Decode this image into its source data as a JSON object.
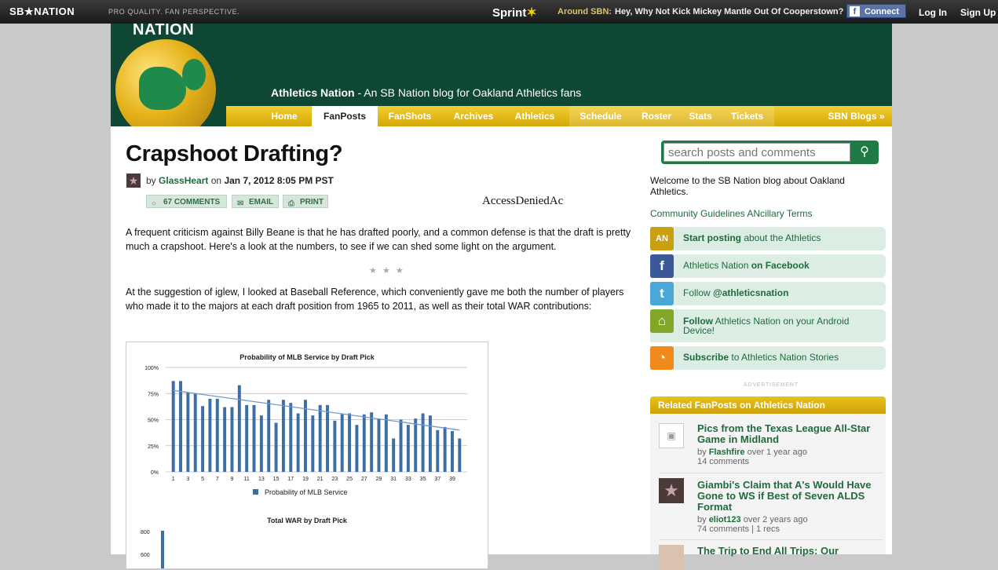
{
  "topbar": {
    "logo": "SB★NATION",
    "tagline": "PRO QUALITY. FAN PERSPECTIVE.",
    "sponsor": "Sprint",
    "around_label": "Around SBN:",
    "around_link": "Hey, Why Not Kick Mickey Mantle Out Of Cooperstown?",
    "fb_connect": "Connect",
    "login": "Log In",
    "signup": "Sign Up"
  },
  "header": {
    "logo_text": "NATION",
    "blog_name": "Athletics Nation",
    "blog_desc": " - An SB Nation blog for Oakland Athletics fans",
    "nav": [
      "Home",
      "FanPosts",
      "FanShots",
      "Archives",
      "Athletics",
      "Schedule",
      "Roster",
      "Stats",
      "Tickets"
    ],
    "nav_active": "FanPosts",
    "sbn_blogs": "SBN Blogs »"
  },
  "post": {
    "title": "Crapshoot Drafting?",
    "by": "by",
    "author": "GlassHeart",
    "on": "on",
    "date": "Jan 7, 2012 8:05 PM PST",
    "comments_btn": "67 COMMENTS",
    "email_btn": "EMAIL",
    "print_btn": "PRINT",
    "access_denied": "AccessDeniedAc",
    "para1": "A frequent criticism against Billy Beane is that he has drafted poorly, and a common defense is that the draft is pretty much a crapshoot. Here's a look at the numbers, to see if we can shed some light on the argument.",
    "separator": "★ ★ ★",
    "para2": "At the suggestion of iglew, I looked at Baseball Reference, which conveniently gave me both the number of players who made it to the majors at each draft position from 1965 to 2011, as well as their total WAR contributions:"
  },
  "chart_data": [
    {
      "type": "bar",
      "title": "Probability of MLB Service by Draft Pick",
      "categories": [
        1,
        2,
        3,
        4,
        5,
        6,
        7,
        8,
        9,
        10,
        11,
        12,
        13,
        14,
        15,
        16,
        17,
        18,
        19,
        20,
        21,
        22,
        23,
        24,
        25,
        26,
        27,
        28,
        29,
        30,
        31,
        32,
        33,
        34,
        35,
        36,
        37,
        38,
        39,
        40
      ],
      "x_tick_labels": [
        "1",
        "3",
        "5",
        "7",
        "9",
        "11",
        "13",
        "15",
        "17",
        "19",
        "21",
        "23",
        "25",
        "27",
        "29",
        "31",
        "33",
        "35",
        "37",
        "39"
      ],
      "y_tick_labels": [
        "0%",
        "25%",
        "50%",
        "75%",
        "100%"
      ],
      "ylim": [
        0,
        100
      ],
      "series": [
        {
          "name": "Probability of MLB Service",
          "values": [
            87,
            87,
            76,
            75,
            63,
            70,
            70,
            62,
            62,
            83,
            64,
            64,
            54,
            69,
            47,
            69,
            66,
            56,
            69,
            54,
            64,
            64,
            49,
            56,
            56,
            45,
            55,
            57,
            51,
            55,
            32,
            50,
            45,
            51,
            56,
            54,
            40,
            43,
            39,
            32
          ]
        }
      ],
      "trendline": {
        "start": 78,
        "end": 40
      },
      "legend": "bottom-center",
      "grid": true,
      "color": "#3a6ea5"
    },
    {
      "type": "bar",
      "title": "Total WAR by Draft Pick",
      "y_tick_labels": [
        "800",
        "600"
      ],
      "partially_visible": true
    }
  ],
  "sidebar": {
    "search_placeholder": "search posts and comments",
    "welcome": "Welcome to the SB Nation blog about Oakland Athletics.",
    "guidelines": "Community Guidelines ANcillary Terms",
    "items": [
      {
        "bold": "Start posting",
        "rest": " about the Athletics",
        "icon": "athletics-logo-icon",
        "thumb": "AN",
        "color": "#c9a012"
      },
      {
        "pre": "Athletics Nation ",
        "bold": "on Facebook",
        "icon": "facebook-icon",
        "thumb": "f",
        "color": "#3b5998"
      },
      {
        "pre": "Follow ",
        "bold": "@athleticsnation",
        "icon": "twitter-icon",
        "thumb": "t",
        "color": "#4aa8d8"
      },
      {
        "bold": "Follow",
        "rest": " Athletics Nation on your Android Device!",
        "icon": "android-icon",
        "thumb": "⌂",
        "color": "#7fa72a"
      },
      {
        "bold": "Subscribe",
        "rest": " to Athletics Nation Stories",
        "icon": "rss-icon",
        "thumb": "◔",
        "color": "#f08a1c"
      }
    ],
    "advertisement": "ADVERTISEMENT",
    "related_title": "Related FanPosts on Athletics Nation",
    "related": [
      {
        "title": "Pics from the Texas League All-Star Game in Midland",
        "by": "by",
        "user": "Flashfire",
        "ago": " over 1 year ago",
        "count": "14 comments"
      },
      {
        "title": "Giambi's Claim that A's Would Have Gone to WS if Best of Seven ALDS Format",
        "by": "by",
        "user": "eliot123",
        "ago": " over 2 years ago",
        "count": "74 comments | 1 recs"
      },
      {
        "title": "The Trip to End All Trips: Our"
      }
    ]
  }
}
